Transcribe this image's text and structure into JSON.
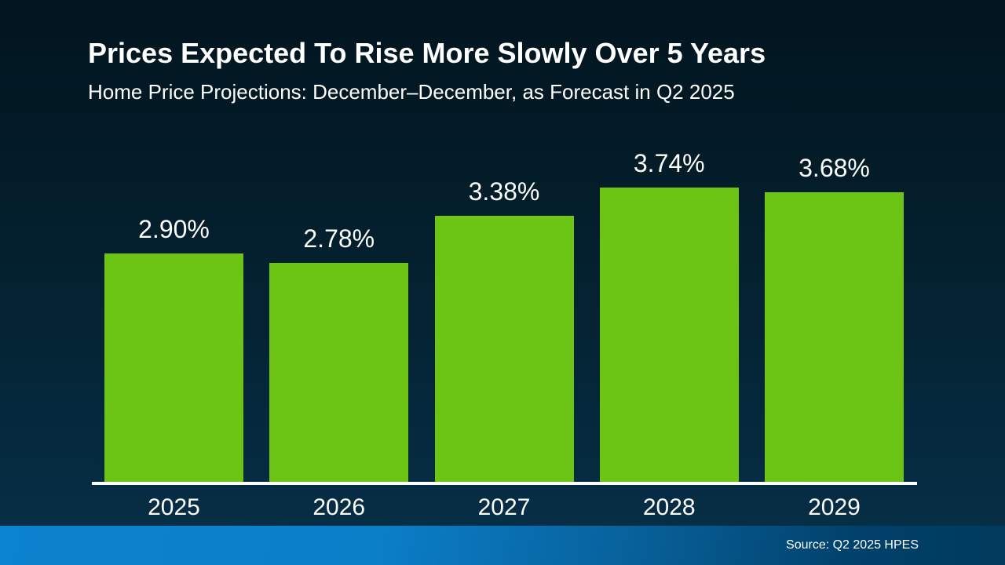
{
  "chart_data": {
    "type": "bar",
    "title": "Prices Expected To Rise More Slowly Over 5 Years",
    "subtitle": "Home Price Projections: December–December, as Forecast in Q2 2025",
    "categories": [
      "2025",
      "2026",
      "2027",
      "2028",
      "2029"
    ],
    "values": [
      2.9,
      2.78,
      3.38,
      3.74,
      3.68
    ],
    "value_labels": [
      "2.90%",
      "2.78%",
      "3.38%",
      "3.74%",
      "3.68%"
    ],
    "ylim": [
      0,
      4
    ],
    "grid": false,
    "legend": "none",
    "source": "Source: Q2 2025 HPES"
  },
  "colors": {
    "bar_green": "#6cc514",
    "text": "#ffffff",
    "background_top": "#021520",
    "background_bottom": "#063049",
    "footer_left": "#0c83ce",
    "footer_right": "#003a5c",
    "axis": "#ffffff"
  }
}
